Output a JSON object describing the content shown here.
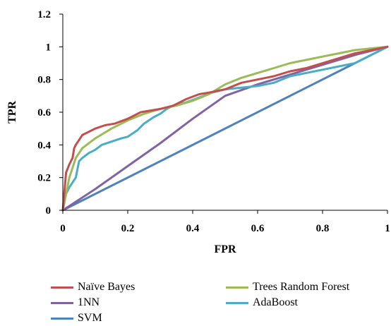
{
  "chart_data": {
    "type": "line",
    "xlabel": "FPR",
    "ylabel": "TPR",
    "xlim": [
      0,
      1
    ],
    "ylim": [
      0,
      1.2
    ],
    "x_ticks": [
      "0",
      "0.2",
      "0.4",
      "0.6",
      "0.8",
      "1"
    ],
    "y_ticks": [
      "0",
      "0.2",
      "0.4",
      "0.6",
      "0.8",
      "1",
      "1.2"
    ],
    "grid": false,
    "legend_position": "bottom",
    "series": [
      {
        "name": "Naïve Bayes",
        "color": "#c0504d",
        "x": [
          0,
          0.01,
          0.02,
          0.03,
          0.035,
          0.04,
          0.05,
          0.06,
          0.08,
          0.1,
          0.13,
          0.16,
          0.2,
          0.24,
          0.3,
          0.34,
          0.38,
          0.42,
          0.45,
          0.5,
          0.55,
          0.6,
          0.65,
          0.7,
          0.75,
          0.8,
          0.85,
          0.9,
          0.95,
          1.0
        ],
        "y": [
          0,
          0.23,
          0.28,
          0.32,
          0.38,
          0.4,
          0.43,
          0.46,
          0.48,
          0.5,
          0.52,
          0.53,
          0.56,
          0.6,
          0.62,
          0.64,
          0.68,
          0.71,
          0.72,
          0.74,
          0.78,
          0.8,
          0.82,
          0.85,
          0.87,
          0.9,
          0.93,
          0.96,
          0.98,
          1.0
        ]
      },
      {
        "name": "Trees Random Forest",
        "color": "#9bbb59",
        "x": [
          0,
          0.02,
          0.04,
          0.06,
          0.1,
          0.15,
          0.2,
          0.25,
          0.3,
          0.35,
          0.4,
          0.45,
          0.5,
          0.55,
          0.6,
          0.65,
          0.7,
          0.75,
          0.8,
          0.85,
          0.9,
          0.95,
          1.0
        ],
        "y": [
          0,
          0.2,
          0.32,
          0.38,
          0.44,
          0.5,
          0.55,
          0.59,
          0.62,
          0.64,
          0.67,
          0.71,
          0.77,
          0.81,
          0.84,
          0.87,
          0.9,
          0.92,
          0.94,
          0.96,
          0.98,
          0.99,
          1.0
        ]
      },
      {
        "name": "1NN",
        "color": "#8064a2",
        "x": [
          0,
          0.1,
          0.2,
          0.3,
          0.4,
          0.5,
          0.6,
          0.7,
          0.8,
          0.9,
          1.0
        ],
        "y": [
          0,
          0.13,
          0.27,
          0.41,
          0.56,
          0.7,
          0.77,
          0.83,
          0.89,
          0.95,
          1.0
        ]
      },
      {
        "name": "AdaBoost",
        "color": "#4bacc6",
        "x": [
          0,
          0.01,
          0.02,
          0.03,
          0.04,
          0.045,
          0.05,
          0.06,
          0.08,
          0.1,
          0.12,
          0.15,
          0.18,
          0.2,
          0.23,
          0.25,
          0.28,
          0.3,
          0.32,
          0.34,
          0.38,
          0.42,
          0.46,
          0.5,
          0.55,
          0.6,
          0.65,
          0.7,
          0.75,
          0.8,
          0.85,
          0.9,
          0.95,
          1.0
        ],
        "y": [
          0,
          0.1,
          0.14,
          0.17,
          0.2,
          0.25,
          0.3,
          0.32,
          0.35,
          0.37,
          0.4,
          0.42,
          0.44,
          0.45,
          0.49,
          0.53,
          0.57,
          0.59,
          0.62,
          0.64,
          0.66,
          0.69,
          0.72,
          0.74,
          0.75,
          0.76,
          0.78,
          0.82,
          0.84,
          0.86,
          0.88,
          0.9,
          0.95,
          1.0
        ]
      },
      {
        "name": "SVM",
        "color": "#4f81bd",
        "x": [
          0,
          1.0
        ],
        "y": [
          0,
          1.0
        ]
      }
    ]
  }
}
